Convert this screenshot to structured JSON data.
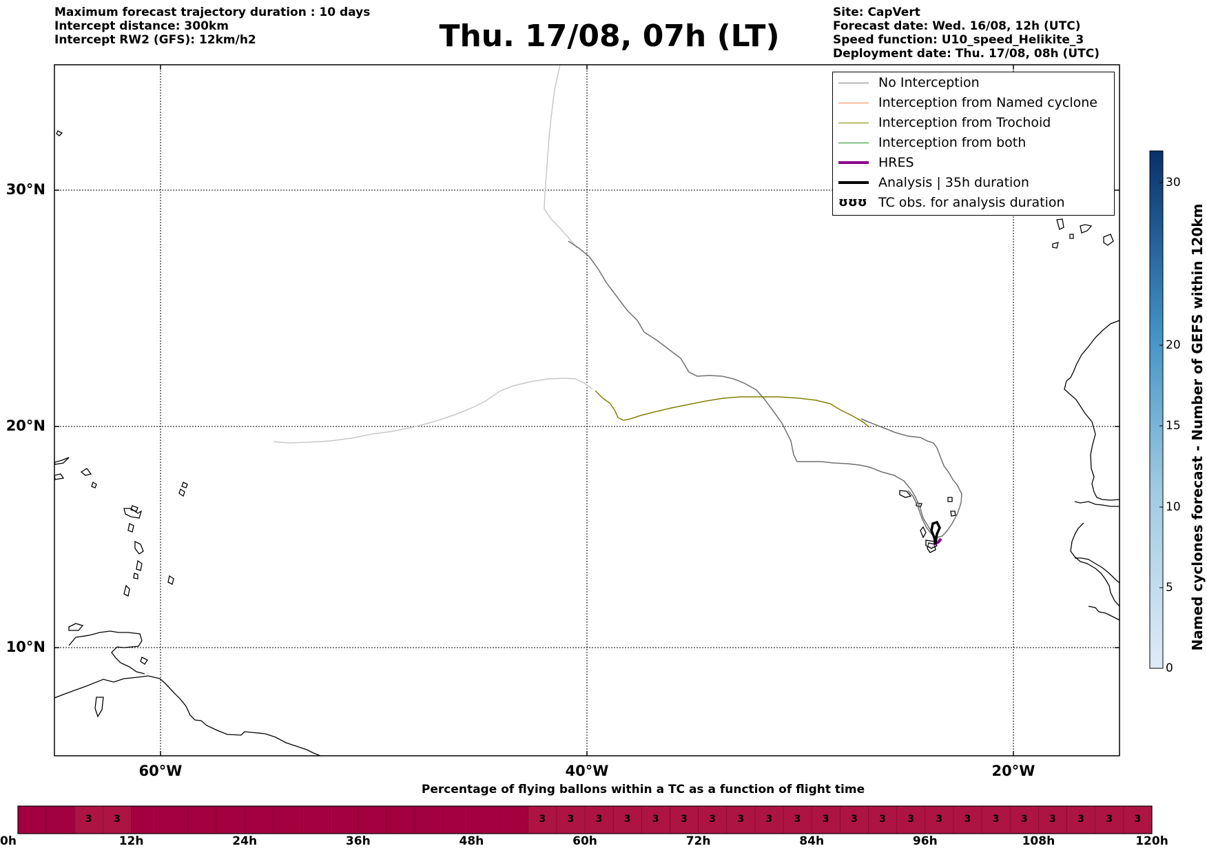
{
  "header": {
    "left": [
      "Maximum forecast trajectory duration : 10 days",
      "Intercept distance: 300km",
      "Intercept RW2 (GFS):  12km/h2"
    ],
    "title": "Thu. 17/08, 07h (LT)",
    "right": [
      "Site: CapVert",
      "Forecast date: Wed. 16/08, 12h (UTC)",
      "Speed function: U10_speed_Helikite_3",
      "Deployment date: Thu. 17/08, 08h (UTC)"
    ]
  },
  "map": {
    "lat_labels": [
      "30°N",
      "20°N",
      "10°N"
    ],
    "lon_labels": [
      "60°W",
      "40°W",
      "20°W"
    ]
  },
  "legend": {
    "items": [
      {
        "label": "No Interception",
        "color": "#808080",
        "style": "line"
      },
      {
        "label": "Interception from Named cyclone",
        "color": "#ff7f50",
        "style": "line"
      },
      {
        "label": "Interception from Trochoid",
        "color": "#808000",
        "style": "line"
      },
      {
        "label": "Interception from both",
        "color": "#228b22",
        "style": "line"
      },
      {
        "label": "HRES",
        "color": "#8b008b",
        "style": "thick"
      },
      {
        "label": "Analysis | 35h duration",
        "color": "#000000",
        "style": "thick"
      },
      {
        "label": "TC obs. for analysis duration",
        "color": "#000000",
        "style": "glyph",
        "glyph": "ʊʊʊ"
      }
    ]
  },
  "colorbar": {
    "label": "Named cyclones forecast - Number of GEFS within 120km",
    "ticks": [
      "30",
      "20",
      "15",
      "10",
      "5",
      "0"
    ]
  },
  "timeline": {
    "title": "Percentage of flying ballons within a TC as a function of flight time",
    "ticks": [
      "0h",
      "12h",
      "24h",
      "36h",
      "48h",
      "60h",
      "72h",
      "84h",
      "96h",
      "108h",
      "120h"
    ],
    "cell_labels": [
      "3",
      "3",
      "3",
      "3",
      "3",
      "3",
      "3",
      "3",
      "3",
      "3",
      "3",
      "3",
      "3",
      "3",
      "3",
      "3",
      "3",
      "3",
      "3",
      "3",
      "3",
      "3",
      "3",
      "3",
      "3",
      "3",
      "3",
      "3"
    ]
  }
}
